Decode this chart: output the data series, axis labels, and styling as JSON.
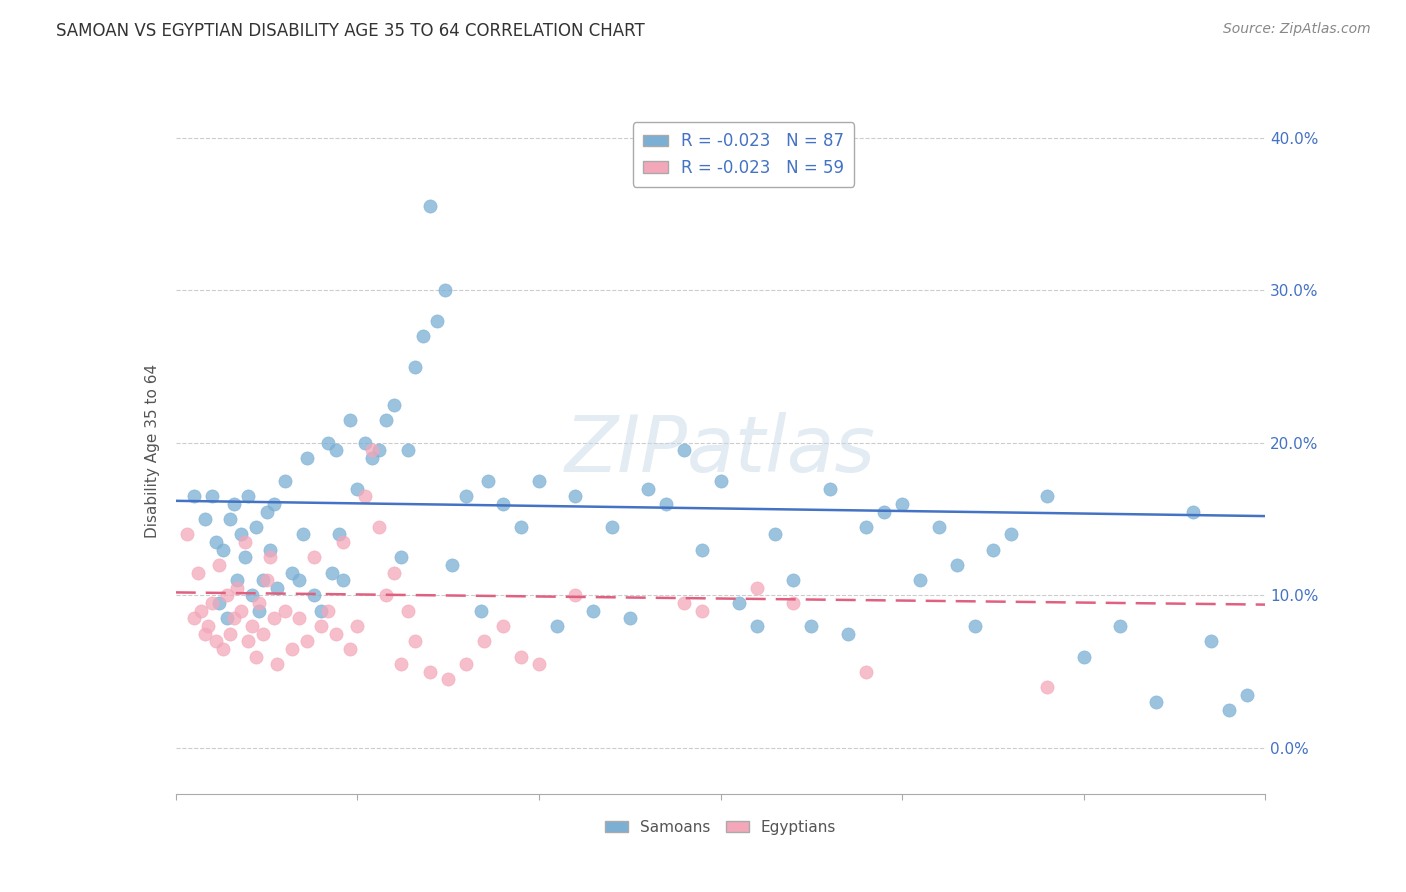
{
  "title": "SAMOAN VS EGYPTIAN DISABILITY AGE 35 TO 64 CORRELATION CHART",
  "source": "Source: ZipAtlas.com",
  "ylabel": "Disability Age 35 to 64",
  "ytick_vals": [
    0.0,
    10.0,
    20.0,
    30.0,
    40.0
  ],
  "xmin": 0.0,
  "xmax": 30.0,
  "ymin": -3.0,
  "ymax": 42.0,
  "legend_r_samoan": "R = -0.023",
  "legend_n_samoan": "N = 87",
  "legend_r_egyptian": "R = -0.023",
  "legend_n_egyptian": "N = 59",
  "samoan_color": "#7bafd4",
  "samoan_line_color": "#4472c4",
  "egyptian_color": "#f4a7b9",
  "egyptian_line_color": "#e06080",
  "watermark": "ZIPatlas",
  "samoan_line_y0": 16.2,
  "samoan_line_y1": 15.2,
  "egyptian_line_y0": 10.2,
  "egyptian_line_y1": 9.4,
  "samoan_points": [
    [
      0.5,
      16.5
    ],
    [
      0.8,
      15.0
    ],
    [
      1.0,
      16.5
    ],
    [
      1.1,
      13.5
    ],
    [
      1.2,
      9.5
    ],
    [
      1.3,
      13.0
    ],
    [
      1.4,
      8.5
    ],
    [
      1.5,
      15.0
    ],
    [
      1.6,
      16.0
    ],
    [
      1.7,
      11.0
    ],
    [
      1.8,
      14.0
    ],
    [
      1.9,
      12.5
    ],
    [
      2.0,
      16.5
    ],
    [
      2.1,
      10.0
    ],
    [
      2.2,
      14.5
    ],
    [
      2.3,
      9.0
    ],
    [
      2.4,
      11.0
    ],
    [
      2.5,
      15.5
    ],
    [
      2.6,
      13.0
    ],
    [
      2.7,
      16.0
    ],
    [
      2.8,
      10.5
    ],
    [
      3.0,
      17.5
    ],
    [
      3.2,
      11.5
    ],
    [
      3.4,
      11.0
    ],
    [
      3.5,
      14.0
    ],
    [
      3.6,
      19.0
    ],
    [
      3.8,
      10.0
    ],
    [
      4.0,
      9.0
    ],
    [
      4.2,
      20.0
    ],
    [
      4.3,
      11.5
    ],
    [
      4.4,
      19.5
    ],
    [
      4.5,
      14.0
    ],
    [
      4.6,
      11.0
    ],
    [
      4.8,
      21.5
    ],
    [
      5.0,
      17.0
    ],
    [
      5.2,
      20.0
    ],
    [
      5.4,
      19.0
    ],
    [
      5.6,
      19.5
    ],
    [
      5.8,
      21.5
    ],
    [
      6.0,
      22.5
    ],
    [
      6.2,
      12.5
    ],
    [
      6.4,
      19.5
    ],
    [
      6.6,
      25.0
    ],
    [
      6.8,
      27.0
    ],
    [
      7.0,
      35.5
    ],
    [
      7.2,
      28.0
    ],
    [
      7.4,
      30.0
    ],
    [
      7.6,
      12.0
    ],
    [
      8.0,
      16.5
    ],
    [
      8.4,
      9.0
    ],
    [
      8.6,
      17.5
    ],
    [
      9.0,
      16.0
    ],
    [
      9.5,
      14.5
    ],
    [
      10.0,
      17.5
    ],
    [
      10.5,
      8.0
    ],
    [
      11.0,
      16.5
    ],
    [
      11.5,
      9.0
    ],
    [
      12.0,
      14.5
    ],
    [
      12.5,
      8.5
    ],
    [
      13.0,
      17.0
    ],
    [
      13.5,
      16.0
    ],
    [
      14.0,
      19.5
    ],
    [
      14.5,
      13.0
    ],
    [
      15.0,
      17.5
    ],
    [
      15.5,
      9.5
    ],
    [
      16.0,
      8.0
    ],
    [
      16.5,
      14.0
    ],
    [
      17.0,
      11.0
    ],
    [
      17.5,
      8.0
    ],
    [
      18.0,
      17.0
    ],
    [
      18.5,
      7.5
    ],
    [
      19.0,
      14.5
    ],
    [
      19.5,
      15.5
    ],
    [
      20.0,
      16.0
    ],
    [
      20.5,
      11.0
    ],
    [
      21.0,
      14.5
    ],
    [
      21.5,
      12.0
    ],
    [
      22.0,
      8.0
    ],
    [
      22.5,
      13.0
    ],
    [
      23.0,
      14.0
    ],
    [
      24.0,
      16.5
    ],
    [
      25.0,
      6.0
    ],
    [
      26.0,
      8.0
    ],
    [
      27.0,
      3.0
    ],
    [
      28.0,
      15.5
    ],
    [
      28.5,
      7.0
    ],
    [
      29.0,
      2.5
    ],
    [
      29.5,
      3.5
    ]
  ],
  "egyptian_points": [
    [
      0.3,
      14.0
    ],
    [
      0.5,
      8.5
    ],
    [
      0.6,
      11.5
    ],
    [
      0.7,
      9.0
    ],
    [
      0.8,
      7.5
    ],
    [
      0.9,
      8.0
    ],
    [
      1.0,
      9.5
    ],
    [
      1.1,
      7.0
    ],
    [
      1.2,
      12.0
    ],
    [
      1.3,
      6.5
    ],
    [
      1.4,
      10.0
    ],
    [
      1.5,
      7.5
    ],
    [
      1.6,
      8.5
    ],
    [
      1.7,
      10.5
    ],
    [
      1.8,
      9.0
    ],
    [
      1.9,
      13.5
    ],
    [
      2.0,
      7.0
    ],
    [
      2.1,
      8.0
    ],
    [
      2.2,
      6.0
    ],
    [
      2.3,
      9.5
    ],
    [
      2.4,
      7.5
    ],
    [
      2.5,
      11.0
    ],
    [
      2.6,
      12.5
    ],
    [
      2.7,
      8.5
    ],
    [
      2.8,
      5.5
    ],
    [
      3.0,
      9.0
    ],
    [
      3.2,
      6.5
    ],
    [
      3.4,
      8.5
    ],
    [
      3.6,
      7.0
    ],
    [
      3.8,
      12.5
    ],
    [
      4.0,
      8.0
    ],
    [
      4.2,
      9.0
    ],
    [
      4.4,
      7.5
    ],
    [
      4.6,
      13.5
    ],
    [
      4.8,
      6.5
    ],
    [
      5.0,
      8.0
    ],
    [
      5.2,
      16.5
    ],
    [
      5.4,
      19.5
    ],
    [
      5.6,
      14.5
    ],
    [
      5.8,
      10.0
    ],
    [
      6.0,
      11.5
    ],
    [
      6.2,
      5.5
    ],
    [
      6.4,
      9.0
    ],
    [
      6.6,
      7.0
    ],
    [
      7.0,
      5.0
    ],
    [
      7.5,
      4.5
    ],
    [
      8.0,
      5.5
    ],
    [
      8.5,
      7.0
    ],
    [
      9.0,
      8.0
    ],
    [
      9.5,
      6.0
    ],
    [
      10.0,
      5.5
    ],
    [
      11.0,
      10.0
    ],
    [
      14.0,
      9.5
    ],
    [
      14.5,
      9.0
    ],
    [
      16.0,
      10.5
    ],
    [
      17.0,
      9.5
    ],
    [
      19.0,
      5.0
    ],
    [
      24.0,
      4.0
    ]
  ]
}
